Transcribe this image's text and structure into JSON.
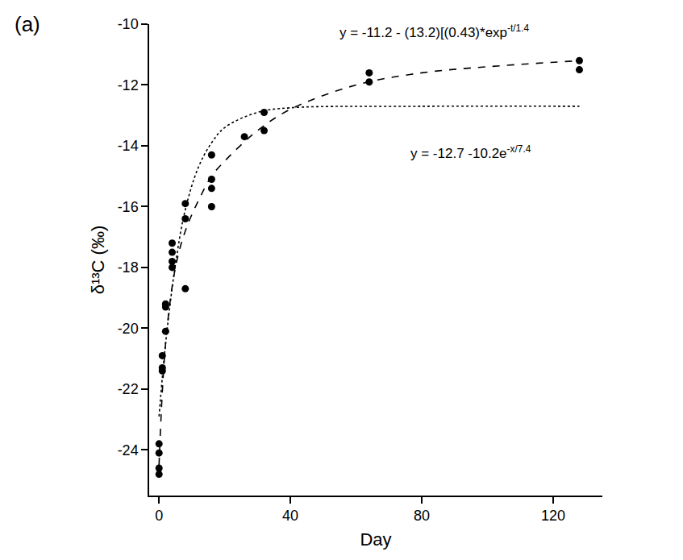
{
  "chart_data": {
    "type": "scatter",
    "panel_label": "(a)",
    "x_label": "Day",
    "y_label": "δ¹³C (‰)",
    "xlim": [
      -3,
      135
    ],
    "xticks": [
      0,
      40,
      80,
      120
    ],
    "ylim": [
      -25.5,
      -10
    ],
    "yticks": [
      -24,
      -22,
      -20,
      -18,
      -16,
      -14,
      -12,
      -10
    ],
    "grid": false,
    "series": [
      {
        "type": "scatter",
        "marker": "circle",
        "color": "#000000",
        "x": [
          0,
          0,
          0,
          0,
          1,
          1,
          1,
          2,
          2,
          2,
          4,
          4,
          4,
          4,
          8,
          8,
          8,
          16,
          16,
          16,
          16,
          26,
          32,
          32,
          64,
          64,
          128,
          128
        ],
        "values": [
          -23.8,
          -24.1,
          -24.6,
          -24.8,
          -20.9,
          -21.3,
          -21.4,
          -19.2,
          -19.3,
          -20.1,
          -17.2,
          -17.5,
          -17.8,
          -18.0,
          -15.9,
          -16.4,
          -18.7,
          -14.3,
          -15.1,
          -15.4,
          -16.0,
          -13.7,
          -12.9,
          -13.5,
          -11.6,
          -11.9,
          -11.2,
          -11.5
        ]
      },
      {
        "type": "line",
        "line_style": "dash",
        "color": "#000000",
        "x": [
          0,
          2,
          5,
          8,
          12,
          16,
          20,
          30,
          40,
          60,
          80,
          100,
          128
        ],
        "values": [
          -24.5,
          -20.5,
          -18.0,
          -16.8,
          -15.8,
          -15.0,
          -14.5,
          -13.5,
          -12.8,
          -12.0,
          -11.6,
          -11.4,
          -11.2
        ]
      },
      {
        "type": "line",
        "line_style": "dot",
        "color": "#000000",
        "x": [
          0,
          2,
          5,
          8,
          12,
          16,
          20,
          30,
          40,
          80,
          128
        ],
        "values": [
          -22.9,
          -20.5,
          -17.9,
          -16.1,
          -14.7,
          -13.9,
          -13.4,
          -12.9,
          -12.75,
          -12.7,
          -12.7
        ]
      }
    ],
    "annotations": [
      {
        "text": "y = -11.2 - (13.2)[(0.43)*exp",
        "superscript": "-t/1.4",
        "x": 84,
        "y": -10.25
      },
      {
        "text": "y = -12.7 -10.2e",
        "superscript": "-x/7.4",
        "x": 95,
        "y": -14.2
      }
    ]
  }
}
